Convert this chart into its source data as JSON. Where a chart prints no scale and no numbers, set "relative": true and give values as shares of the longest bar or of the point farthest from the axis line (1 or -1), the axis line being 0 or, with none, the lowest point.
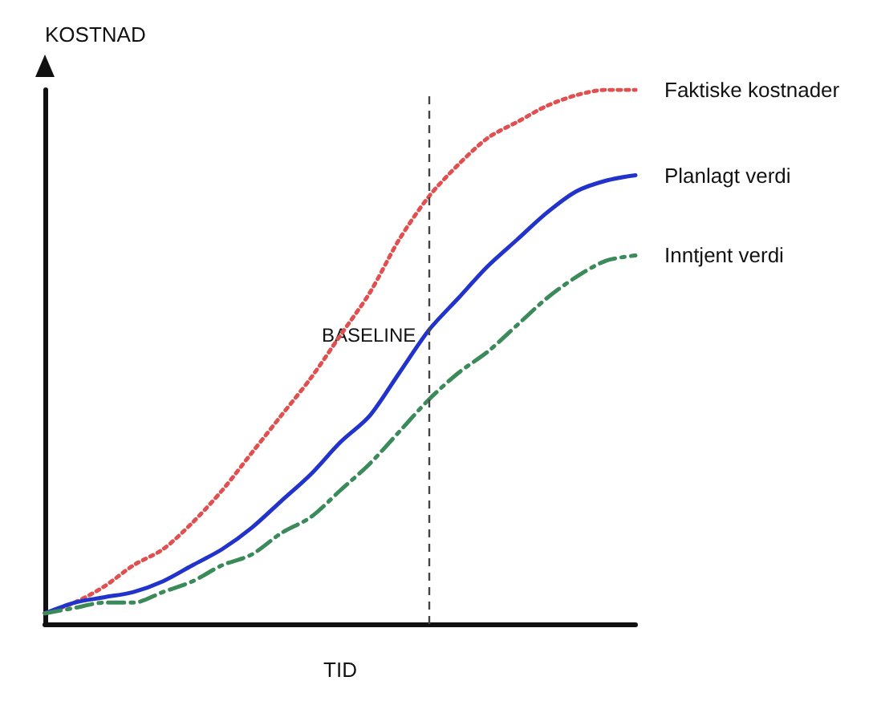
{
  "chart_data": {
    "type": "line",
    "relative": true,
    "xlabel": "TID",
    "ylabel": "KOSTNAD",
    "categories": [
      null,
      null,
      null,
      null,
      null,
      null,
      null,
      null,
      null,
      null,
      null,
      null,
      null,
      null,
      null,
      null,
      null,
      null,
      null,
      null,
      null
    ],
    "series": [
      {
        "name": "Faktiske kostnader",
        "color": "#e05050",
        "line_style": "dotted",
        "values": [
          0.02,
          0.04,
          0.07,
          0.11,
          0.14,
          0.19,
          0.25,
          0.32,
          0.39,
          0.46,
          0.54,
          0.62,
          0.72,
          0.8,
          0.86,
          0.91,
          0.94,
          0.97,
          0.99,
          1.0,
          1.0
        ]
      },
      {
        "name": "Planlagt verdi",
        "color": "#2233cc",
        "line_style": "solid",
        "values": [
          0.02,
          0.04,
          0.05,
          0.06,
          0.08,
          0.11,
          0.14,
          0.18,
          0.23,
          0.28,
          0.34,
          0.39,
          0.47,
          0.55,
          0.61,
          0.67,
          0.72,
          0.77,
          0.81,
          0.83,
          0.84
        ]
      },
      {
        "name": "Inntjent verdi",
        "color": "#3a8a5a",
        "line_style": "dashed",
        "values": [
          0.02,
          0.03,
          0.04,
          0.04,
          0.06,
          0.08,
          0.11,
          0.13,
          0.17,
          0.2,
          0.25,
          0.3,
          0.36,
          0.42,
          0.47,
          0.51,
          0.56,
          0.61,
          0.65,
          0.68,
          0.69
        ]
      }
    ],
    "annotations": [
      "BASELINE"
    ],
    "legend": false,
    "grid": false,
    "marker": "none"
  }
}
